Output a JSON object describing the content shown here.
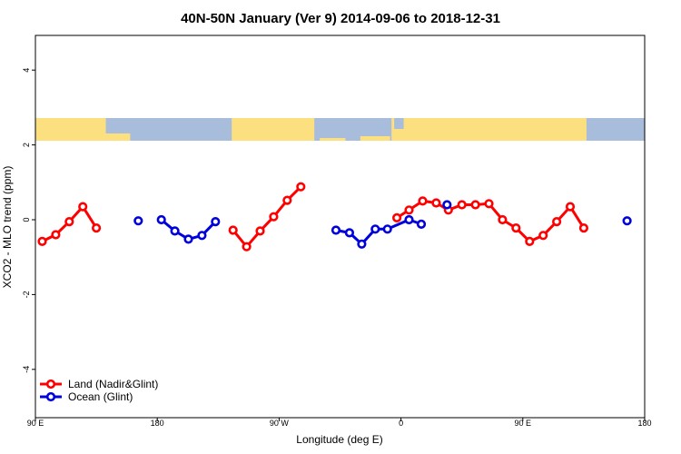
{
  "chart_data": {
    "type": "line",
    "title": "40N-50N January (Ver 9)   2014-09-06 to 2018-12-31",
    "xlabel": "Longitude (deg E)",
    "ylabel": "XCO2 - MLO trend (ppm)",
    "xlim": [
      90,
      540
    ],
    "ylim": [
      -5,
      5
    ],
    "xticks": [
      {
        "value": 90,
        "label": "90 E"
      },
      {
        "value": 180,
        "label": "180"
      },
      {
        "value": 270,
        "label": "90 W"
      },
      {
        "value": 360,
        "label": "0"
      },
      {
        "value": 450,
        "label": "90 E"
      },
      {
        "value": 540,
        "label": "180"
      }
    ],
    "yticks": [
      {
        "value": -4,
        "label": "-4"
      },
      {
        "value": -2,
        "label": "-2"
      },
      {
        "value": 0,
        "label": "0"
      },
      {
        "value": 2,
        "label": "2"
      },
      {
        "value": 4,
        "label": "4"
      }
    ],
    "legend_position": "bottom-left",
    "map_strip": {
      "land_color": "#fce080",
      "ocean_color": "#a8bcdc"
    },
    "series": [
      {
        "name": "Land (Nadir&Glint)",
        "color": "#ff0000",
        "segments": [
          [
            [
              95,
              -0.58
            ],
            [
              105,
              -0.4
            ],
            [
              115,
              -0.05
            ],
            [
              125,
              0.35
            ],
            [
              135,
              -0.22
            ]
          ],
          [
            [
              236,
              -0.28
            ],
            [
              246,
              -0.72
            ],
            [
              256,
              -0.3
            ],
            [
              266,
              0.08
            ],
            [
              276,
              0.52
            ],
            [
              286,
              0.88
            ]
          ],
          [
            [
              357,
              0.05
            ],
            [
              366,
              0.26
            ],
            [
              376,
              0.5
            ],
            [
              386,
              0.45
            ],
            [
              395,
              0.26
            ],
            [
              405,
              0.4
            ],
            [
              415,
              0.4
            ],
            [
              425,
              0.43
            ],
            [
              435,
              0.0
            ],
            [
              445,
              -0.22
            ],
            [
              455,
              -0.58
            ],
            [
              465,
              -0.42
            ],
            [
              475,
              -0.05
            ],
            [
              485,
              0.35
            ],
            [
              495,
              -0.22
            ]
          ]
        ]
      },
      {
        "name": "Ocean (Glint)",
        "color": "#0000dd",
        "segments": [
          [
            [
              166,
              -0.03
            ]
          ],
          [
            [
              183,
              0.0
            ],
            [
              193,
              -0.3
            ],
            [
              203,
              -0.52
            ],
            [
              213,
              -0.42
            ],
            [
              223,
              -0.05
            ]
          ],
          [
            [
              312,
              -0.28
            ],
            [
              322,
              -0.35
            ],
            [
              331,
              -0.65
            ],
            [
              341,
              -0.25
            ],
            [
              350,
              -0.25
            ],
            [
              366,
              0.0
            ],
            [
              375,
              -0.12
            ]
          ],
          [
            [
              394,
              0.4
            ]
          ],
          [
            [
              527,
              -0.03
            ]
          ]
        ]
      }
    ]
  }
}
